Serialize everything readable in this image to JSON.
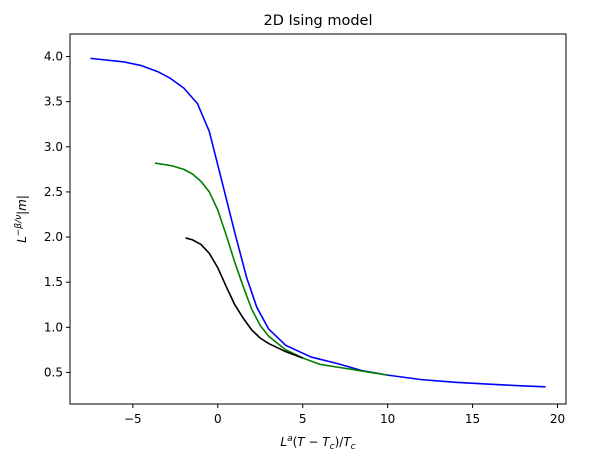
{
  "chart_data": {
    "type": "line",
    "title": "2D Ising model",
    "xlabel": "L^a(T − T_c)/T_c",
    "ylabel": "L^{−β/ν}|m|",
    "xlim": [
      -8.7,
      20.5
    ],
    "ylim": [
      0.15,
      4.25
    ],
    "xticks": [
      -5,
      0,
      5,
      10,
      15,
      20
    ],
    "yticks": [
      0.5,
      1.0,
      1.5,
      2.0,
      2.5,
      3.0,
      3.5,
      4.0
    ],
    "xtick_labels": [
      "−5",
      "0",
      "5",
      "10",
      "15",
      "20"
    ],
    "ytick_labels": [
      "0.5",
      "1.0",
      "1.5",
      "2.0",
      "2.5",
      "3.0",
      "3.5",
      "4.0"
    ],
    "grid": false,
    "series": [
      {
        "color": "#0000ff",
        "x": [
          -7.5,
          -5.5,
          -4.5,
          -3.5,
          -2.8,
          -2.0,
          -1.2,
          -0.5,
          0.2,
          1.0,
          1.7,
          2.3,
          3.0,
          4.0,
          5.5,
          7.0,
          8.5,
          10.0,
          12.0,
          14.0,
          16.0,
          18.0,
          19.3
        ],
        "y": [
          3.98,
          3.94,
          3.9,
          3.83,
          3.76,
          3.65,
          3.48,
          3.17,
          2.65,
          2.05,
          1.55,
          1.22,
          0.98,
          0.8,
          0.67,
          0.6,
          0.52,
          0.47,
          0.42,
          0.39,
          0.37,
          0.35,
          0.34
        ]
      },
      {
        "color": "#008000",
        "x": [
          -3.7,
          -2.7,
          -2.0,
          -1.5,
          -1.0,
          -0.5,
          0.0,
          0.5,
          1.0,
          1.5,
          2.0,
          2.5,
          3.0,
          4.0,
          5.0,
          6.0,
          7.0,
          8.0,
          9.0,
          10.0
        ],
        "y": [
          2.82,
          2.79,
          2.75,
          2.7,
          2.62,
          2.5,
          2.3,
          2.02,
          1.72,
          1.45,
          1.2,
          1.02,
          0.9,
          0.75,
          0.66,
          0.59,
          0.56,
          0.53,
          0.5,
          0.47
        ]
      },
      {
        "color": "#000000",
        "x": [
          -1.9,
          -1.5,
          -1.0,
          -0.5,
          0.0,
          0.5,
          1.0,
          1.5,
          2.0,
          2.5,
          3.0,
          4.0,
          5.0
        ],
        "y": [
          1.99,
          1.97,
          1.92,
          1.82,
          1.66,
          1.45,
          1.25,
          1.1,
          0.97,
          0.88,
          0.82,
          0.73,
          0.66
        ]
      }
    ]
  }
}
